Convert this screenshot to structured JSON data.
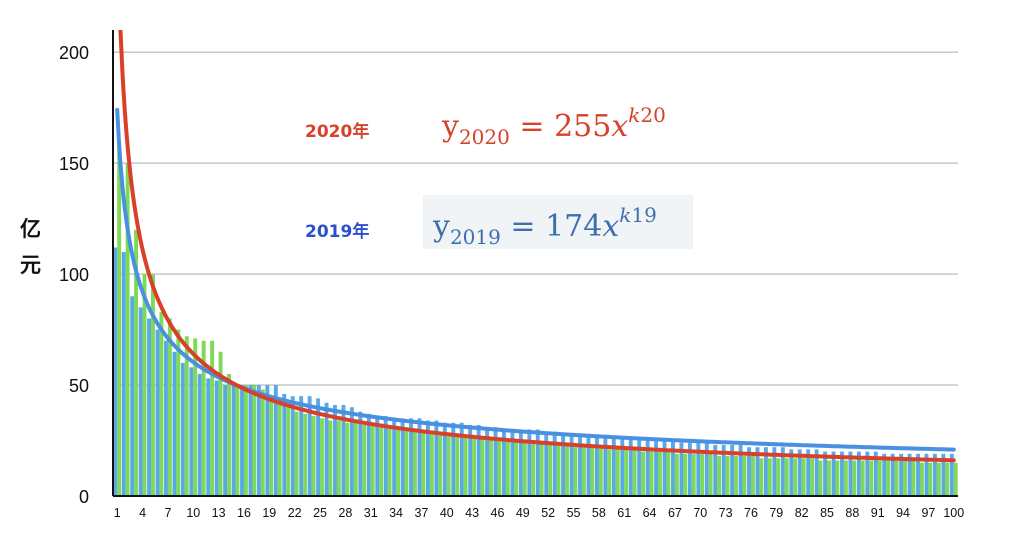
{
  "chart_data": {
    "type": "bar",
    "ylabel": "亿元",
    "ylim": [
      0,
      210
    ],
    "yticks": [
      0,
      50,
      100,
      150,
      200
    ],
    "xlim": [
      1,
      100
    ],
    "xtick_step": 3,
    "grid": "horizontal",
    "legend": [
      {
        "label": "2020年",
        "equation": "y2020 = 255x^k20",
        "color": "#d9402a"
      },
      {
        "label": "2019年",
        "equation": "y2019 = 174x^k19",
        "color": "#2a4fcf",
        "equation_color": "#3d6fad"
      }
    ],
    "series": [
      {
        "name": "2020年",
        "kind": "bar",
        "color": "#7ed957",
        "values": [
          160,
          150,
          120,
          100,
          100,
          83,
          80,
          75,
          72,
          71,
          70,
          70,
          65,
          55,
          50,
          50,
          50,
          48,
          45,
          42,
          40,
          38,
          37,
          36,
          35,
          34,
          34,
          33,
          33,
          32,
          32,
          31,
          31,
          30,
          30,
          30,
          29,
          29,
          28,
          28,
          28,
          27,
          27,
          26,
          26,
          26,
          25,
          25,
          24,
          24,
          24,
          23,
          23,
          23,
          22,
          22,
          22,
          22,
          21,
          21,
          21,
          21,
          20,
          20,
          20,
          20,
          19,
          19,
          19,
          19,
          19,
          18,
          18,
          18,
          18,
          18,
          17,
          17,
          17,
          17,
          17,
          17,
          17,
          16,
          16,
          16,
          16,
          16,
          16,
          16,
          16,
          16,
          16,
          16,
          16,
          15,
          15,
          15,
          15,
          15
        ]
      },
      {
        "name": "2019年",
        "kind": "bar",
        "color": "#5aa9e6",
        "values": [
          112,
          110,
          90,
          85,
          80,
          75,
          70,
          65,
          60,
          58,
          55,
          53,
          52,
          50,
          50,
          50,
          50,
          50,
          50,
          50,
          46,
          45,
          45,
          45,
          44,
          42,
          41,
          41,
          40,
          38,
          37,
          36,
          36,
          35,
          35,
          35,
          35,
          34,
          34,
          33,
          33,
          33,
          32,
          32,
          31,
          31,
          30,
          30,
          30,
          30,
          30,
          29,
          29,
          28,
          28,
          28,
          28,
          27,
          27,
          26,
          26,
          26,
          26,
          25,
          25,
          25,
          25,
          24,
          24,
          24,
          24,
          23,
          23,
          23,
          23,
          22,
          22,
          22,
          22,
          22,
          21,
          21,
          21,
          21,
          20,
          20,
          20,
          20,
          20,
          20,
          20,
          19,
          19,
          19,
          19,
          19,
          19,
          19,
          19,
          19
        ]
      },
      {
        "name": "y2020 fit",
        "kind": "line",
        "color": "#d9402a",
        "a": 255,
        "k": -0.6
      },
      {
        "name": "y2019 fit",
        "kind": "line",
        "color": "#4a90e2",
        "a": 174,
        "k": -0.46
      }
    ]
  }
}
